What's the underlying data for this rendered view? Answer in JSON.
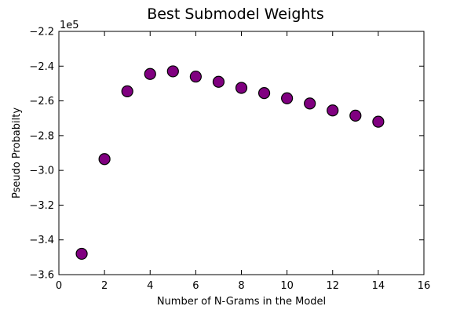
{
  "chart_data": {
    "type": "scatter",
    "title": "Best Submodel Weights",
    "xlabel": "Number of N-Grams in the Model",
    "ylabel": "Pseudo Probabilty",
    "offset_label": "1e5",
    "xlim": [
      0,
      16
    ],
    "ylim": [
      -3.6,
      -2.2
    ],
    "xticks": [
      0,
      2,
      4,
      6,
      8,
      10,
      12,
      14,
      16
    ],
    "xtick_labels": [
      "0",
      "2",
      "4",
      "6",
      "8",
      "10",
      "12",
      "14",
      "16"
    ],
    "yticks": [
      -3.6,
      -3.4,
      -3.2,
      -3.0,
      -2.8,
      -2.6,
      -2.4,
      -2.2
    ],
    "ytick_labels": [
      "−3.6",
      "−3.4",
      "−3.2",
      "−3.0",
      "−2.8",
      "−2.6",
      "−2.4",
      "−2.2"
    ],
    "grid": false,
    "marker_color": "#800080",
    "marker_edge_color": "#000000",
    "x": [
      1,
      2,
      3,
      4,
      5,
      6,
      7,
      8,
      9,
      10,
      11,
      12,
      13,
      14
    ],
    "y": [
      -3.48,
      -2.935,
      -2.545,
      -2.445,
      -2.43,
      -2.46,
      -2.49,
      -2.525,
      -2.555,
      -2.585,
      -2.615,
      -2.655,
      -2.685,
      -2.72
    ]
  }
}
